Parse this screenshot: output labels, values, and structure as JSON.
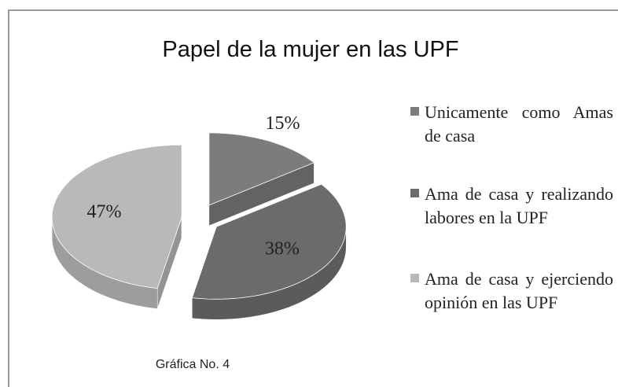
{
  "chart_data": {
    "type": "pie",
    "title": "Papel de la mujer en las UPF",
    "categories": [
      "Unicamente como Amas de casa",
      "Ama de casa y realizando labores en la UPF",
      "Ama de casa y ejerciendo opinión en las UPF"
    ],
    "values": [
      15,
      38,
      47
    ],
    "value_labels": [
      "15%",
      "38%",
      "47%"
    ],
    "colors": [
      "#7c7c7c",
      "#6b6b6b",
      "#b9b9b9"
    ],
    "caption": "Gráfica No. 4"
  }
}
